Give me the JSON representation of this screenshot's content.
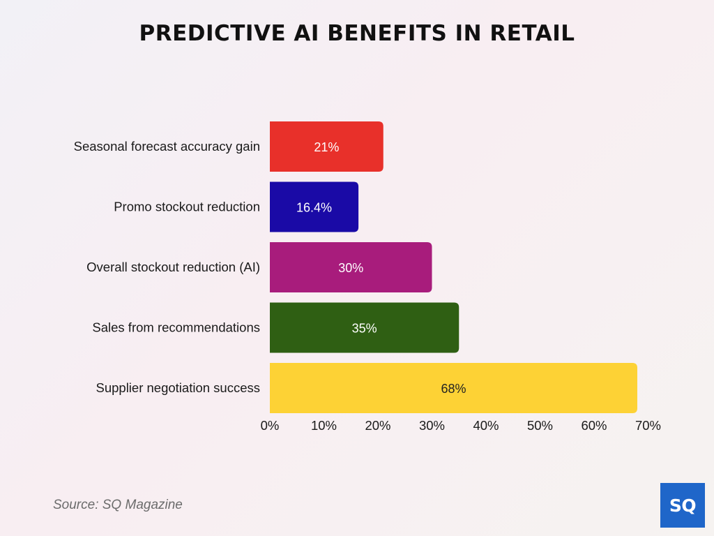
{
  "title": "PREDICTIVE AI BENEFITS IN RETAIL",
  "source": "Source: SQ Magazine",
  "logo": "SQ",
  "chart_data": {
    "type": "bar",
    "orientation": "horizontal",
    "categories": [
      "Seasonal forecast accuracy gain",
      "Promo stockout reduction",
      "Overall stockout reduction (AI)",
      "Sales from recommendations",
      "Supplier negotiation success"
    ],
    "values": [
      21,
      16.4,
      30,
      35,
      68
    ],
    "data_labels": [
      "21%",
      "16.4%",
      "30%",
      "35%",
      "68%"
    ],
    "colors": [
      "#e8302a",
      "#1a0aa6",
      "#a81c7c",
      "#2f5f13",
      "#fdd235"
    ],
    "label_colors": [
      "#ffffff",
      "#ffffff",
      "#ffffff",
      "#ffffff",
      "#222222"
    ],
    "xlim": [
      0,
      70
    ],
    "x_ticks": [
      0,
      10,
      20,
      30,
      40,
      50,
      60,
      70
    ],
    "x_tick_labels": [
      "0%",
      "10%",
      "20%",
      "30%",
      "40%",
      "50%",
      "60%",
      "70%"
    ],
    "grid": false,
    "legend": "none"
  }
}
